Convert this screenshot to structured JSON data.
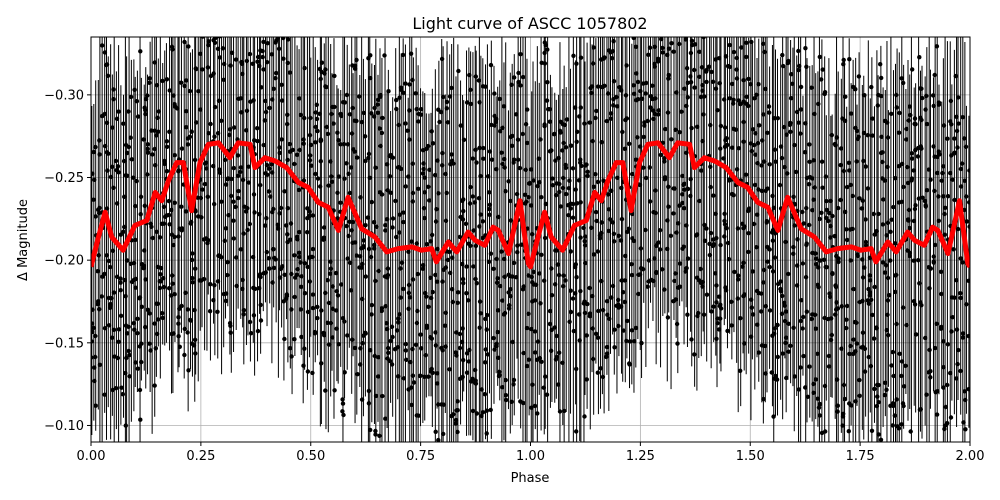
{
  "chart_data": {
    "type": "scatter",
    "title": "Light curve of ASCC 1057802",
    "xlabel": "Phase",
    "ylabel": "Δ Magnitude",
    "xlim": [
      0,
      2
    ],
    "ylim": [
      -0.335,
      -0.09
    ],
    "y_inverted": true,
    "grid": true,
    "xticks": [
      "0.00",
      "0.25",
      "0.50",
      "0.75",
      "1.00",
      "1.25",
      "1.50",
      "1.75",
      "2.00"
    ],
    "yticks": [
      "−0.30",
      "−0.25",
      "−0.20",
      "−0.15",
      "−0.10"
    ],
    "xtick_values": [
      0,
      0.25,
      0.5,
      0.75,
      1,
      1.25,
      1.5,
      1.75,
      2
    ],
    "ytick_values": [
      -0.3,
      -0.25,
      -0.2,
      -0.15,
      -0.1
    ],
    "colors": {
      "observations": "#000000",
      "model": "#ff0000"
    },
    "observations": {
      "marker": "dot with error bar",
      "color": "#000000"
    },
    "model_curve": {
      "color": "#ff0000",
      "x": [
        0.0,
        0.017,
        0.032,
        0.047,
        0.073,
        0.1,
        0.127,
        0.146,
        0.161,
        0.176,
        0.195,
        0.21,
        0.229,
        0.248,
        0.267,
        0.29,
        0.316,
        0.335,
        0.362,
        0.373,
        0.396,
        0.419,
        0.445,
        0.472,
        0.494,
        0.517,
        0.54,
        0.563,
        0.585,
        0.616,
        0.646,
        0.673,
        0.699,
        0.73,
        0.752,
        0.775,
        0.786,
        0.813,
        0.832,
        0.858,
        0.874,
        0.896,
        0.915,
        0.927,
        0.95,
        0.976,
        0.995
      ],
      "y": [
        -0.196,
        -0.214,
        -0.229,
        -0.214,
        -0.206,
        -0.221,
        -0.224,
        -0.241,
        -0.236,
        -0.248,
        -0.259,
        -0.259,
        -0.23,
        -0.259,
        -0.27,
        -0.271,
        -0.262,
        -0.271,
        -0.27,
        -0.256,
        -0.262,
        -0.26,
        -0.256,
        -0.247,
        -0.244,
        -0.235,
        -0.232,
        -0.218,
        -0.238,
        -0.219,
        -0.214,
        -0.205,
        -0.207,
        -0.208,
        -0.206,
        -0.207,
        -0.199,
        -0.211,
        -0.205,
        -0.217,
        -0.212,
        -0.209,
        -0.22,
        -0.218,
        -0.204,
        -0.236,
        -0.198
      ],
      "period_repeats": 2
    }
  }
}
